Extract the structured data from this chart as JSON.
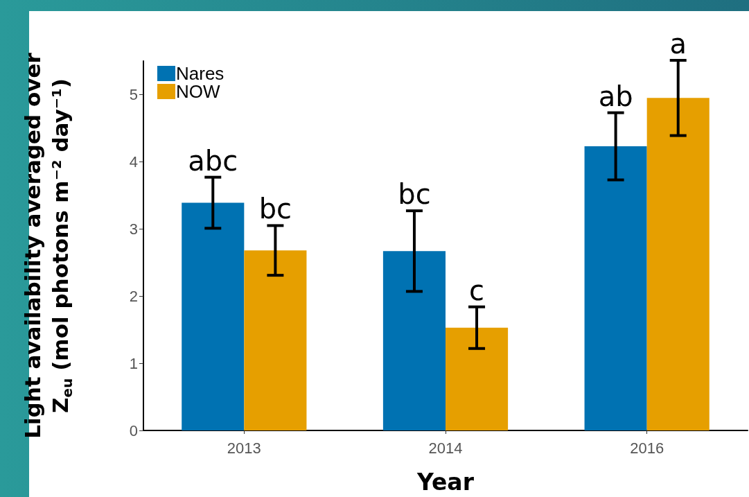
{
  "chart_data": {
    "type": "bar",
    "xlabel": "Year",
    "ylabel": "Light availability averaged over\nZ$_{eu}$ (mol photons m⁻² day⁻¹)",
    "categories": [
      "2013",
      "2014",
      "2016"
    ],
    "series": [
      {
        "name": "Nares",
        "color": "#0072b2",
        "values": [
          3.39,
          2.67,
          4.23
        ],
        "errors": [
          0.38,
          0.6,
          0.5
        ],
        "value_labels": [
          "abc",
          "bc",
          "ab"
        ]
      },
      {
        "name": "NOW",
        "color": "#e69f00",
        "values": [
          2.68,
          1.53,
          4.95
        ],
        "errors": [
          0.37,
          0.31,
          0.56
        ],
        "value_labels": [
          "bc",
          "c",
          "a"
        ]
      }
    ],
    "ylim": [
      0,
      5.5
    ],
    "yticks": [
      0,
      1,
      2,
      3,
      4,
      5
    ],
    "grid": false,
    "legend": "top left"
  }
}
